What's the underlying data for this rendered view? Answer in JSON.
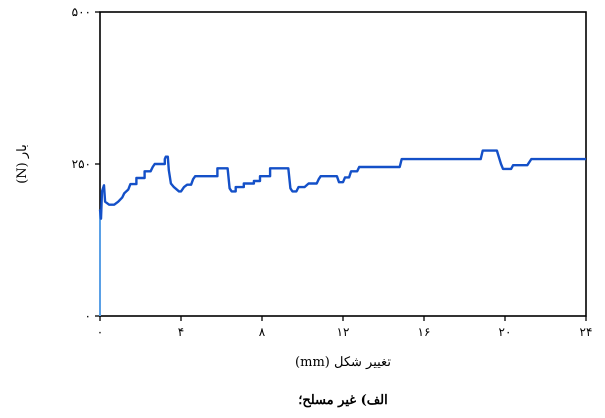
{
  "chart_data": {
    "type": "line",
    "title": "",
    "xlabel": "تغییر شکل (mm)",
    "ylabel": "بار (N)",
    "caption": "الف) غیر مسلح؛",
    "xlim": [
      0,
      24
    ],
    "ylim": [
      0,
      500
    ],
    "xticks": [
      {
        "value": 0,
        "label": "۰"
      },
      {
        "value": 4,
        "label": "۴"
      },
      {
        "value": 8,
        "label": "۸"
      },
      {
        "value": 12,
        "label": "۱۲"
      },
      {
        "value": 16,
        "label": "۱۶"
      },
      {
        "value": 20,
        "label": "۲۰"
      },
      {
        "value": 24,
        "label": "۲۴"
      }
    ],
    "yticks": [
      {
        "value": 0,
        "label": "۰"
      },
      {
        "value": 250,
        "label": "۲۵۰"
      },
      {
        "value": 500,
        "label": "۵۰۰"
      }
    ],
    "grid": false,
    "colors": {
      "series": "#1450c8",
      "initial": "#5aa0e6",
      "axes": "#000000"
    },
    "series": [
      {
        "initial": [
          [
            0,
            0
          ],
          [
            0,
            100
          ],
          [
            0,
            175
          ]
        ],
        "points": [
          [
            0,
            175
          ],
          [
            0.05,
            160
          ],
          [
            0.1,
            205
          ],
          [
            0.2,
            215
          ],
          [
            0.25,
            188
          ],
          [
            0.45,
            183
          ],
          [
            0.7,
            183
          ],
          [
            0.9,
            188
          ],
          [
            1.1,
            195
          ],
          [
            1.2,
            202
          ],
          [
            1.4,
            208
          ],
          [
            1.5,
            217
          ],
          [
            1.8,
            217
          ],
          [
            1.8,
            227
          ],
          [
            2.2,
            227
          ],
          [
            2.2,
            238
          ],
          [
            2.5,
            238
          ],
          [
            2.6,
            245
          ],
          [
            2.7,
            250
          ],
          [
            3.2,
            250
          ],
          [
            3.2,
            258
          ],
          [
            3.25,
            262
          ],
          [
            3.35,
            262
          ],
          [
            3.4,
            240
          ],
          [
            3.5,
            218
          ],
          [
            3.65,
            212
          ],
          [
            3.9,
            205
          ],
          [
            4.0,
            205
          ],
          [
            4.15,
            212
          ],
          [
            4.3,
            216
          ],
          [
            4.5,
            216
          ],
          [
            4.6,
            225
          ],
          [
            4.7,
            230
          ],
          [
            5.8,
            230
          ],
          [
            5.8,
            243
          ],
          [
            6.3,
            243
          ],
          [
            6.4,
            210
          ],
          [
            6.5,
            205
          ],
          [
            6.7,
            205
          ],
          [
            6.7,
            212
          ],
          [
            7.1,
            212
          ],
          [
            7.1,
            218
          ],
          [
            7.6,
            218
          ],
          [
            7.6,
            222
          ],
          [
            7.9,
            222
          ],
          [
            7.9,
            230
          ],
          [
            8.4,
            230
          ],
          [
            8.4,
            243
          ],
          [
            9.3,
            243
          ],
          [
            9.4,
            210
          ],
          [
            9.5,
            205
          ],
          [
            9.7,
            205
          ],
          [
            9.8,
            212
          ],
          [
            10.1,
            212
          ],
          [
            10.3,
            218
          ],
          [
            10.7,
            218
          ],
          [
            10.8,
            225
          ],
          [
            10.9,
            230
          ],
          [
            11.7,
            230
          ],
          [
            11.8,
            220
          ],
          [
            12.0,
            220
          ],
          [
            12.1,
            228
          ],
          [
            12.3,
            228
          ],
          [
            12.4,
            238
          ],
          [
            12.7,
            238
          ],
          [
            12.8,
            245
          ],
          [
            14.8,
            245
          ],
          [
            14.9,
            258
          ],
          [
            18.8,
            258
          ],
          [
            18.9,
            272
          ],
          [
            19.6,
            272
          ],
          [
            19.8,
            250
          ],
          [
            19.9,
            242
          ],
          [
            20.3,
            242
          ],
          [
            20.4,
            248
          ],
          [
            21.1,
            248
          ],
          [
            21.3,
            258
          ],
          [
            24,
            258
          ]
        ]
      }
    ]
  }
}
